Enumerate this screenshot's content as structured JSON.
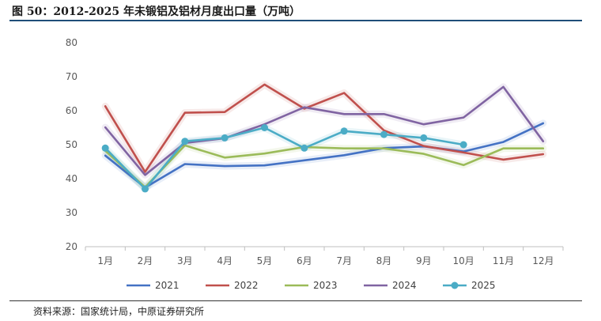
{
  "header": {
    "title": "图 50：2012-2025 年未锻铝及铝材月度出口量（万吨）"
  },
  "footer": {
    "source": "资料来源：国家统计局，中原证券研究所"
  },
  "chart_data": {
    "type": "line",
    "title": "2012-2025 年未锻铝及铝材月度出口量（万吨）",
    "xlabel": "",
    "ylabel": "万吨",
    "ylim": [
      20,
      80
    ],
    "yticks": [
      20,
      30,
      40,
      50,
      60,
      70,
      80
    ],
    "grid": false,
    "legend_position": "bottom",
    "categories": [
      "1月",
      "2月",
      "3月",
      "4月",
      "5月",
      "6月",
      "7月",
      "8月",
      "9月",
      "10月",
      "11月",
      "12月"
    ],
    "series": [
      {
        "name": "2021",
        "color": "#4472c4",
        "markers": false,
        "values": [
          46.8,
          37.4,
          44.3,
          43.7,
          43.9,
          45.4,
          46.9,
          49.0,
          49.5,
          48.0,
          50.8,
          56.3
        ]
      },
      {
        "name": "2022",
        "color": "#c0504d",
        "markers": false,
        "values": [
          61.3,
          42.0,
          59.4,
          59.6,
          67.7,
          60.6,
          65.2,
          54.2,
          49.6,
          47.7,
          45.6,
          47.2
        ]
      },
      {
        "name": "2023",
        "color": "#9bbb59",
        "markers": false,
        "values": [
          48.2,
          37.5,
          49.8,
          46.2,
          47.4,
          49.3,
          48.9,
          48.9,
          47.3,
          44.0,
          48.9,
          48.9
        ]
      },
      {
        "name": "2024",
        "color": "#8064a2",
        "markers": false,
        "values": [
          55.1,
          41.1,
          50.5,
          51.9,
          56.0,
          61.0,
          59.0,
          59.0,
          56.0,
          58.0,
          67.0,
          51.0
        ]
      },
      {
        "name": "2025",
        "color": "#4bacc6",
        "markers": true,
        "values": [
          49.0,
          37.0,
          51.0,
          52.0,
          55.0,
          49.0,
          54.0,
          53.0,
          52.0,
          50.0,
          null,
          null
        ]
      }
    ]
  }
}
